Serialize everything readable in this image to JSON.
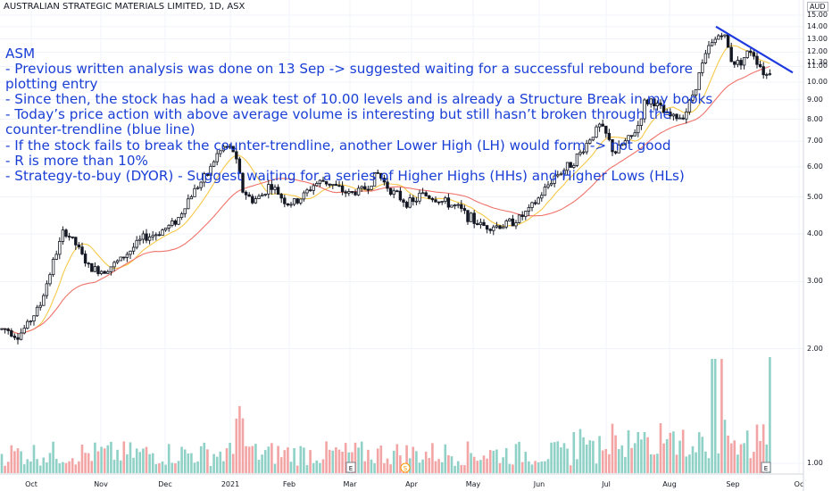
{
  "header": {
    "title": "AUSTRALIAN STRATEGIC MATERIALS LIMITED, 1D, ASX",
    "currency": "AUD"
  },
  "annotation": {
    "lines": [
      "ASM",
      "- Previous written analysis was done on 13 Sep -> suggested waiting for a successful rebound before",
      "plotting entry",
      "- Since then, the stock has had a weak test of 10.00 levels and is already a Structure Break in my books",
      "- Today’s price action with above average volume is interesting but still hasn’t broken through the",
      "counter-trendline (blue line)",
      "- If the stock fails to break the counter-trendline, another Lower High (LH) would form -> not good",
      "- R is more than 10%",
      "- Strategy-to-buy (DYOR) - Suggest waiting for a series of Higher Highs (HHs) and Higher Lows (HLs)"
    ]
  },
  "chart_data": {
    "type": "candlestick",
    "y_scale": "log",
    "ylim": [
      0.9,
      15.0
    ],
    "y_ticks": [
      "1.00",
      "2.00",
      "3.00",
      "4.00",
      "5.00",
      "6.00",
      "7.00",
      "8.00",
      "9.00",
      "10.00",
      "11.00",
      "11.30",
      "12.00",
      "13.00",
      "14.00",
      "15.00"
    ],
    "x_ticks": [
      "Oct",
      "Nov",
      "Dec",
      "2021",
      "Feb",
      "Mar",
      "Apr",
      "May",
      "Jun",
      "Jul",
      "Aug",
      "Sep",
      "Oc"
    ],
    "event_markers": [
      "E",
      "S",
      "E"
    ],
    "series": [
      {
        "name": "price",
        "color_up": "#26a69a",
        "color_down": "#ef5350",
        "color": "#131722"
      },
      {
        "name": "short MA",
        "color": "#f7c948"
      },
      {
        "name": "long MA",
        "color": "#f0736b"
      }
    ],
    "price_path": [
      [
        0,
        2.25
      ],
      [
        8,
        2.25
      ],
      [
        20,
        2.15
      ],
      [
        30,
        2.3
      ],
      [
        45,
        2.6
      ],
      [
        60,
        3.4
      ],
      [
        72,
        4.1
      ],
      [
        85,
        3.75
      ],
      [
        100,
        3.25
      ],
      [
        115,
        3.2
      ],
      [
        130,
        3.35
      ],
      [
        145,
        3.6
      ],
      [
        160,
        3.9
      ],
      [
        175,
        4.0
      ],
      [
        190,
        4.2
      ],
      [
        200,
        4.4
      ],
      [
        210,
        4.9
      ],
      [
        220,
        5.3
      ],
      [
        232,
        5.7
      ],
      [
        242,
        6.4
      ],
      [
        252,
        6.8
      ],
      [
        262,
        6.6
      ],
      [
        272,
        5.2
      ],
      [
        282,
        4.9
      ],
      [
        292,
        5.0
      ],
      [
        302,
        5.4
      ],
      [
        312,
        5.1
      ],
      [
        322,
        4.8
      ],
      [
        332,
        4.85
      ],
      [
        342,
        5.1
      ],
      [
        352,
        5.4
      ],
      [
        362,
        5.5
      ],
      [
        372,
        5.4
      ],
      [
        382,
        5.2
      ],
      [
        392,
        5.1
      ],
      [
        402,
        5.2
      ],
      [
        412,
        5.3
      ],
      [
        422,
        5.8
      ],
      [
        432,
        5.4
      ],
      [
        442,
        5.1
      ],
      [
        452,
        4.9
      ],
      [
        462,
        4.8
      ],
      [
        472,
        5.1
      ],
      [
        482,
        5.0
      ],
      [
        492,
        4.9
      ],
      [
        502,
        4.8
      ],
      [
        512,
        4.7
      ],
      [
        522,
        4.5
      ],
      [
        532,
        4.3
      ],
      [
        542,
        4.2
      ],
      [
        552,
        4.2
      ],
      [
        562,
        4.2
      ],
      [
        572,
        4.3
      ],
      [
        582,
        4.4
      ],
      [
        592,
        4.6
      ],
      [
        602,
        4.9
      ],
      [
        612,
        5.3
      ],
      [
        622,
        5.7
      ],
      [
        632,
        5.9
      ],
      [
        642,
        6.2
      ],
      [
        652,
        6.6
      ],
      [
        662,
        7.2
      ],
      [
        672,
        7.7
      ],
      [
        680,
        7.2
      ],
      [
        688,
        6.5
      ],
      [
        698,
        6.9
      ],
      [
        708,
        7.2
      ],
      [
        716,
        7.8
      ],
      [
        722,
        8.8
      ],
      [
        730,
        9.0
      ],
      [
        738,
        8.6
      ],
      [
        746,
        8.2
      ],
      [
        754,
        8.1
      ],
      [
        762,
        8.1
      ],
      [
        770,
        8.5
      ],
      [
        778,
        9.6
      ],
      [
        786,
        11.0
      ],
      [
        794,
        12.3
      ],
      [
        802,
        13.0
      ],
      [
        808,
        13.6
      ],
      [
        814,
        12.8
      ],
      [
        818,
        11.6
      ],
      [
        824,
        11.2
      ],
      [
        830,
        11.4
      ],
      [
        836,
        11.8
      ],
      [
        842,
        12.2
      ],
      [
        848,
        11.4
      ],
      [
        854,
        10.8
      ],
      [
        858,
        10.4
      ],
      [
        862,
        10.7
      ],
      [
        866,
        11.0
      ]
    ],
    "trendline": [
      [
        802,
        14.0
      ],
      [
        888,
        10.6
      ]
    ]
  }
}
